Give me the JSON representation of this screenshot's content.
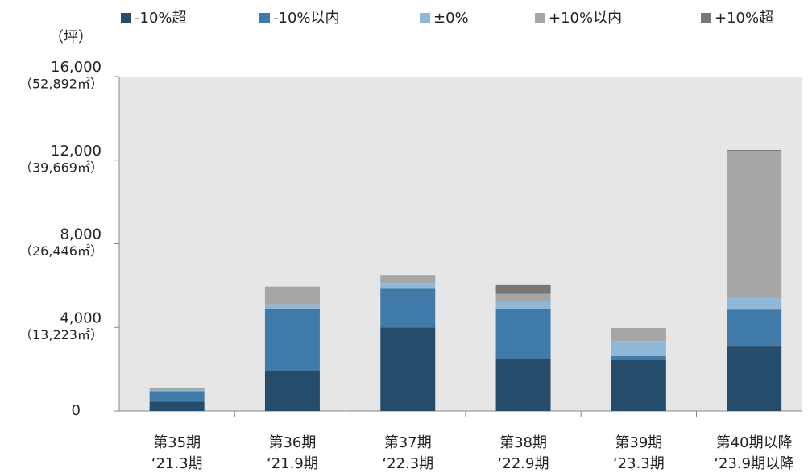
{
  "chart_data": {
    "type": "stacked_bar",
    "y_unit_label": "（坪）",
    "categories": [
      "第35期",
      "第36期",
      "第37期",
      "第38期",
      "第39期",
      "第40期以降"
    ],
    "sub_categories": [
      "‘21.3期",
      "‘21.9期",
      "‘22.3期",
      "‘22.9期",
      "‘23.3期",
      "‘23.9期以降"
    ],
    "series": [
      {
        "name": "-10%超",
        "color": "#264c6c",
        "values": [
          450,
          1900,
          4000,
          2470,
          2430,
          3080
        ]
      },
      {
        "name": "-10%以内",
        "color": "#3f7aa8",
        "values": [
          500,
          3000,
          1850,
          2390,
          190,
          1770
        ]
      },
      {
        "name": "±0%",
        "color": "#8fb8d8",
        "values": [
          50,
          200,
          270,
          350,
          730,
          620
        ]
      },
      {
        "name": "+10%以内",
        "color": "#a6a6a6",
        "values": [
          80,
          850,
          390,
          390,
          620,
          6940
        ]
      },
      {
        "name": "+10%超",
        "color": "#777777",
        "values": [
          0,
          0,
          0,
          420,
          0,
          80
        ]
      }
    ],
    "ylim": [
      0,
      16000
    ],
    "yticks": [
      0,
      {
        "value": 4000,
        "label": "4,000"
      },
      {
        "value": 8000,
        "label": "8,000"
      },
      {
        "value": 12000,
        "label": "12,000"
      },
      {
        "value": 16000,
        "label": "16,000"
      }
    ],
    "ytick_area_labels": [
      null,
      "（13,223㎡）",
      "（26,446㎡）",
      "（39,669㎡）",
      "（52,892㎡）"
    ],
    "legend": "top"
  }
}
